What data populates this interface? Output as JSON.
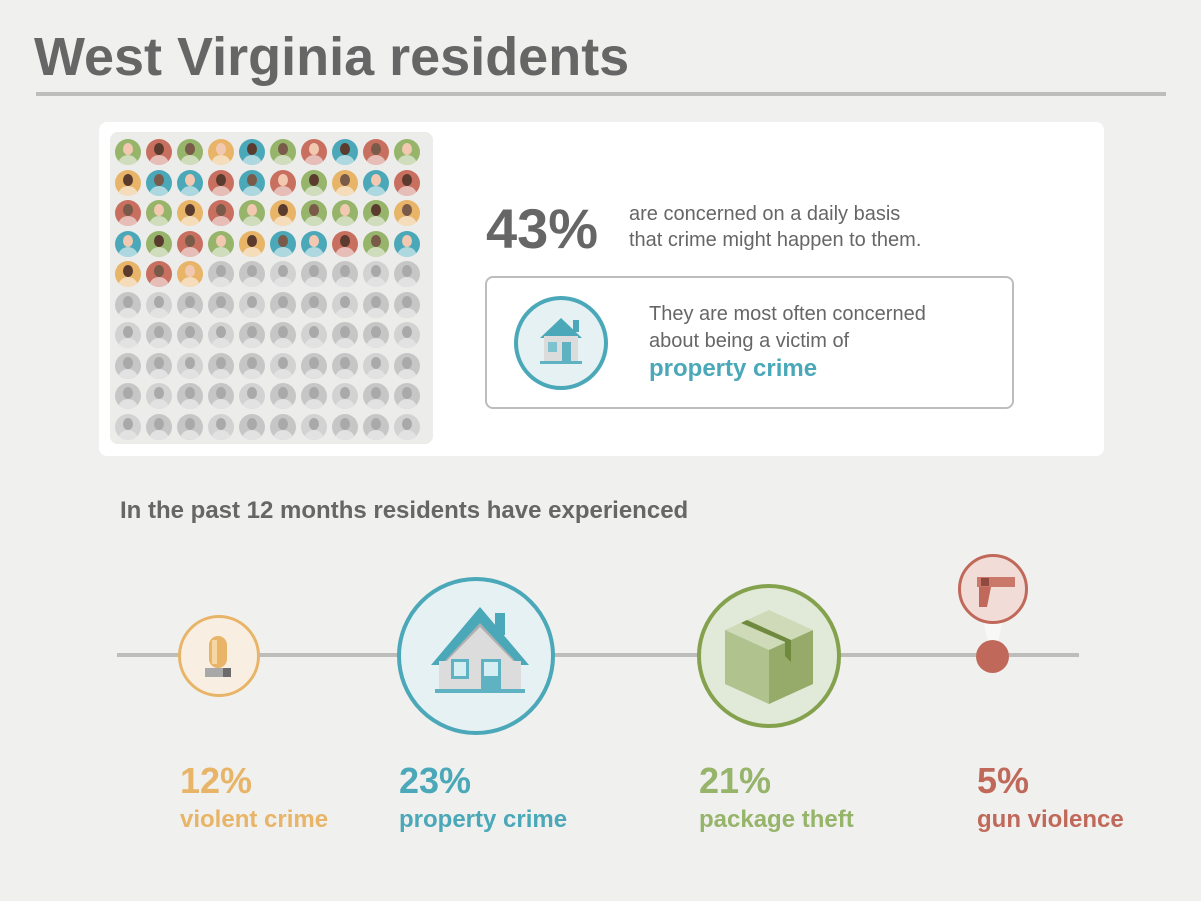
{
  "title": "West Virginia residents",
  "concern": {
    "percent": "43%",
    "text_line1": "are concerned on a daily basis",
    "text_line2": "that crime might happen to them.",
    "concerned_count": 43,
    "total": 100
  },
  "callout": {
    "line1": "They are most often concerned",
    "line2": "about being a victim of",
    "highlight": "property crime",
    "icon": "house-icon"
  },
  "section_title": "In the past 12 months residents have experienced",
  "items": [
    {
      "percent": "12%",
      "label": "violent crime",
      "value": 12,
      "icon": "siren-icon",
      "color": "#e8b468"
    },
    {
      "percent": "23%",
      "label": "property crime",
      "value": 23,
      "icon": "house-icon",
      "color": "#4aa8b8"
    },
    {
      "percent": "21%",
      "label": "package theft",
      "value": 21,
      "icon": "package-icon",
      "color": "#96b46a"
    },
    {
      "percent": "5%",
      "label": "gun violence",
      "value": 5,
      "icon": "gun-icon",
      "color": "#c0695a"
    }
  ],
  "avatar_colors": [
    "#96b46a",
    "#c86f60",
    "#e8b468",
    "#4aa8b8"
  ],
  "inactive_color": "#c8c8c8"
}
